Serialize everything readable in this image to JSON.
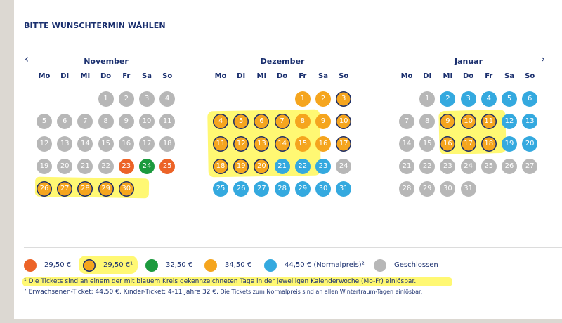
{
  "heading": "BITTE WUNSCHTERMIN WÄHLEN",
  "nav": {
    "prev": "‹",
    "next": "›"
  },
  "weekdays": [
    "Mo",
    "DI",
    "MI",
    "Do",
    "Fr",
    "Sa",
    "So"
  ],
  "months": [
    {
      "name": "November",
      "offset": 3,
      "days": [
        "gray",
        "gray",
        "gray",
        "gray",
        "gray",
        "gray",
        "gray",
        "gray",
        "gray",
        "gray",
        "gray",
        "gray",
        "gray",
        "gray",
        "gray",
        "gray",
        "gray",
        "gray",
        "gray",
        "gray",
        "gray",
        "gray",
        "red",
        "green",
        "red",
        "circ",
        "circ",
        "circ",
        "circ",
        "circ"
      ]
    },
    {
      "name": "Dezember",
      "offset": 4,
      "days": [
        "orange",
        "orange",
        "circ",
        "circ",
        "circ",
        "circ",
        "circ",
        "orange",
        "orange",
        "circ",
        "circ",
        "circ",
        "circ",
        "circ",
        "orange",
        "orange",
        "circ",
        "circ",
        "circ",
        "circ",
        "blue",
        "blue",
        "blue",
        "gray",
        "blue",
        "blue",
        "blue",
        "blue",
        "blue",
        "blue",
        "blue"
      ]
    },
    {
      "name": "Januar",
      "offset": 1,
      "days": [
        "gray",
        "blue",
        "blue",
        "blue",
        "blue",
        "blue",
        "gray",
        "gray",
        "circ",
        "circ",
        "circ",
        "blue",
        "blue",
        "gray",
        "gray",
        "circ",
        "circ",
        "circ",
        "blue",
        "blue",
        "gray",
        "gray",
        "gray",
        "gray",
        "gray",
        "gray",
        "gray",
        "gray",
        "gray",
        "gray",
        "gray"
      ]
    }
  ],
  "colors": {
    "gray": "#b7b7b7",
    "orange": "#f5a51e",
    "red": "#ec6327",
    "green": "#1c9a3e",
    "blue": "#34a9df",
    "navy": "#1a2f6e",
    "highlight": "#fff200"
  },
  "legend": [
    {
      "color": "red",
      "label": "29,50 €"
    },
    {
      "color": "circ",
      "label": "29,50 €¹"
    },
    {
      "color": "green",
      "label": "32,50 €"
    },
    {
      "color": "orange",
      "label": "34,50 €"
    },
    {
      "color": "blue",
      "label": "44,50 € (Normalpreis)²"
    },
    {
      "color": "gray",
      "label": "Geschlossen"
    }
  ],
  "footnote1": "¹ Die Tickets sind an einem der mit blauem Kreis gekennzeichneten Tage in der jeweiligen Kalenderwoche (Mo-Fr) einlösbar.",
  "footnote2a": "² Erwachsenen-Ticket: 44,50 €, Kinder-Ticket: 4-11 Jahre 32 €.",
  "footnote2b": " Die Tickets zum Normalpreis sind an allen Wintertraum-Tagen einlösbar."
}
